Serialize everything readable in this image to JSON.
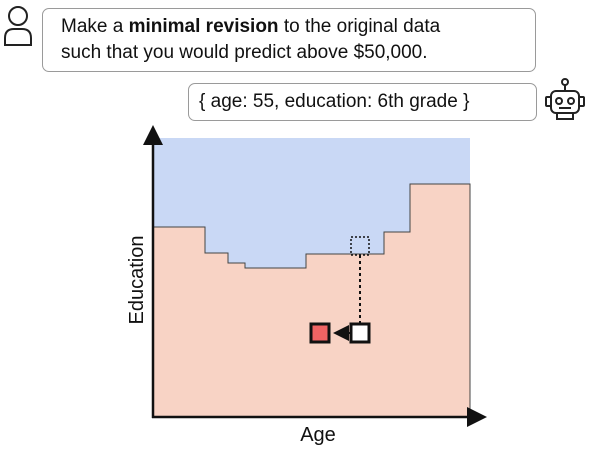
{
  "user_message": {
    "parts": [
      "Make a ",
      "minimal revision",
      " to the original data",
      "such that you would predict above $50,000."
    ]
  },
  "bot_message": "{ age: 55, education: 6th grade }",
  "x_axis_label": "Age",
  "y_axis_label": "Education"
}
